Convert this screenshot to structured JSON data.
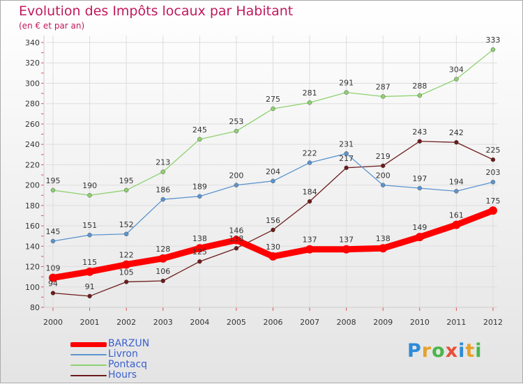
{
  "title": "Evolution des Impôts locaux par Habitant",
  "subtitle": "(en € et par an)",
  "logo": {
    "text": "Proxiti",
    "letters": [
      "P",
      "r",
      "o",
      "x",
      "i",
      "t",
      "i"
    ],
    "colors": [
      "#2e8bd8",
      "#e6a12b",
      "#49b649",
      "#e94e3a",
      "#2e8bd8",
      "#e6a12b",
      "#49b649"
    ]
  },
  "chart_data": {
    "type": "line",
    "title": "Evolution des Impôts locaux par Habitant",
    "subtitle": "(en € et par an)",
    "x": [
      "2000",
      "2001",
      "2002",
      "2003",
      "2004",
      "2005",
      "2006",
      "2007",
      "2008",
      "2009",
      "2010",
      "2011",
      "2012"
    ],
    "ylim": [
      80,
      340
    ],
    "yticks": [
      80,
      100,
      120,
      140,
      160,
      180,
      200,
      220,
      240,
      260,
      280,
      300,
      320,
      340
    ],
    "grid": true,
    "legend_position": "bottom-left",
    "series": [
      {
        "name": "Hours",
        "color": "#6b1a1a",
        "values": [
          94,
          91,
          105,
          106,
          125,
          138,
          156,
          184,
          217,
          219,
          243,
          242,
          225
        ]
      },
      {
        "name": "Livron",
        "color": "#5b94cf",
        "values": [
          145,
          151,
          152,
          186,
          189,
          200,
          204,
          222,
          231,
          200,
          197,
          194,
          203
        ]
      },
      {
        "name": "Pontacq",
        "color": "#8ed16f",
        "values": [
          195,
          190,
          195,
          213,
          245,
          253,
          275,
          281,
          291,
          287,
          288,
          304,
          333
        ]
      },
      {
        "name": "BARZUN",
        "color": "#ff0000",
        "values": [
          109,
          115,
          122,
          128,
          138,
          146,
          130,
          137,
          137,
          138,
          149,
          161,
          175
        ]
      }
    ]
  },
  "legend": {
    "items": [
      {
        "label": "BARZUN",
        "color": "#ff0000"
      },
      {
        "label": "Livron",
        "color": "#5b94cf"
      },
      {
        "label": "Pontacq",
        "color": "#8ed16f"
      },
      {
        "label": "Hours",
        "color": "#6b1a1a"
      }
    ]
  }
}
